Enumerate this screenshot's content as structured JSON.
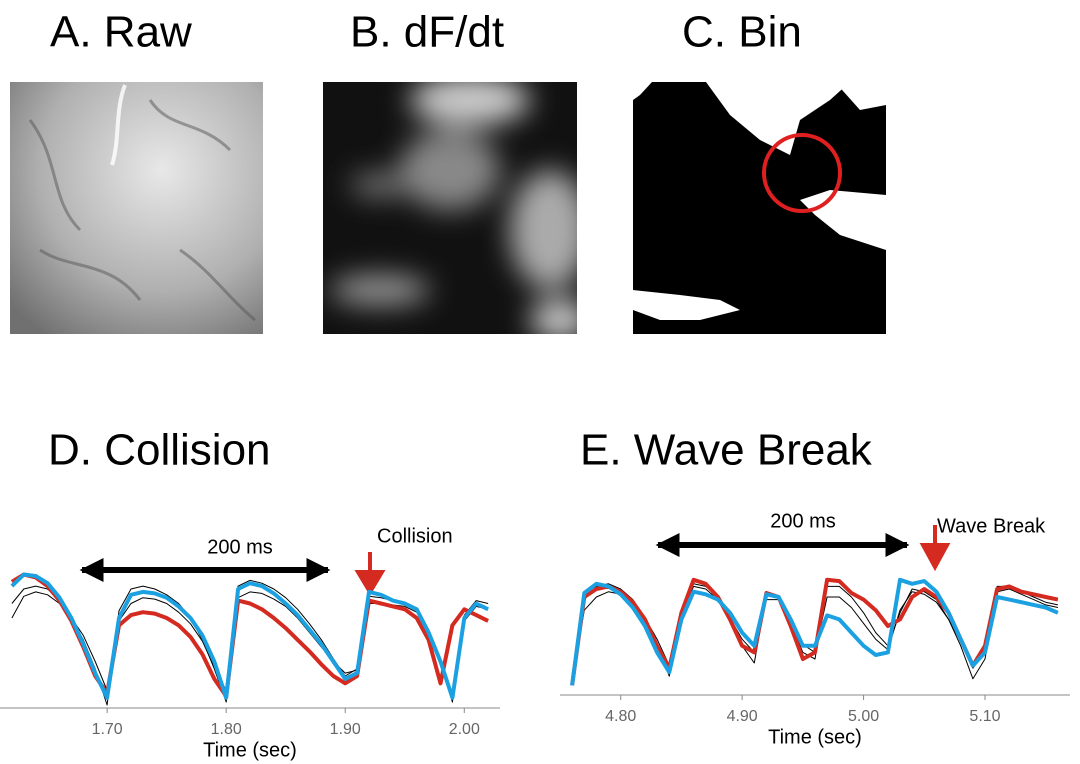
{
  "panels": [
    {
      "title": "A. Raw"
    },
    {
      "title": "B. dF/dt"
    },
    {
      "title": "C. Bin"
    }
  ],
  "chart_data": [
    {
      "type": "line",
      "title": "D. Collision",
      "xlabel": "Time (sec)",
      "annotations": [
        "200 ms",
        "Collision"
      ],
      "x": [
        1.62,
        1.63,
        1.64,
        1.65,
        1.66,
        1.67,
        1.68,
        1.69,
        1.7,
        1.71,
        1.72,
        1.73,
        1.74,
        1.75,
        1.76,
        1.77,
        1.78,
        1.79,
        1.8,
        1.81,
        1.82,
        1.83,
        1.84,
        1.85,
        1.86,
        1.87,
        1.88,
        1.89,
        1.9,
        1.91,
        1.92,
        1.93,
        1.94,
        1.95,
        1.96,
        1.97,
        1.98,
        1.99,
        2.0,
        2.01,
        2.02
      ],
      "xlim": [
        1.61,
        2.03
      ],
      "ylim": [
        0,
        1
      ],
      "xticks": [
        {
          "value": 1.7,
          "label": "1.70"
        },
        {
          "value": 1.8,
          "label": "1.80"
        },
        {
          "value": 1.9,
          "label": "1.90"
        },
        {
          "value": 2.0,
          "label": "2.00"
        }
      ],
      "series": [
        {
          "color": "#000000",
          "values": [
            0.7,
            0.8,
            0.82,
            0.8,
            0.72,
            0.6,
            0.45,
            0.25,
            0.0,
            0.65,
            0.8,
            0.82,
            0.8,
            0.76,
            0.7,
            0.6,
            0.45,
            0.25,
            0.02,
            0.82,
            0.86,
            0.84,
            0.8,
            0.74,
            0.66,
            0.56,
            0.45,
            0.32,
            0.2,
            0.25,
            0.75,
            0.74,
            0.72,
            0.7,
            0.66,
            0.52,
            0.32,
            0.02,
            0.62,
            0.72,
            0.7
          ]
        },
        {
          "color": "#000000",
          "values": [
            0.6,
            0.75,
            0.78,
            0.76,
            0.7,
            0.6,
            0.48,
            0.3,
            0.1,
            0.58,
            0.7,
            0.74,
            0.73,
            0.7,
            0.64,
            0.56,
            0.44,
            0.26,
            0.1,
            0.74,
            0.78,
            0.77,
            0.73,
            0.68,
            0.6,
            0.5,
            0.4,
            0.3,
            0.22,
            0.24,
            0.7,
            0.7,
            0.69,
            0.68,
            0.64,
            0.5,
            0.3,
            0.08,
            0.58,
            0.68,
            0.66
          ]
        },
        {
          "color": "#d42a20",
          "values": [
            0.85,
            0.9,
            0.88,
            0.82,
            0.72,
            0.58,
            0.4,
            0.2,
            0.08,
            0.55,
            0.62,
            0.64,
            0.63,
            0.6,
            0.55,
            0.47,
            0.35,
            0.18,
            0.06,
            0.72,
            0.7,
            0.66,
            0.6,
            0.53,
            0.45,
            0.37,
            0.28,
            0.2,
            0.15,
            0.2,
            0.72,
            0.7,
            0.68,
            0.66,
            0.6,
            0.45,
            0.15,
            0.55,
            0.66,
            0.62,
            0.58
          ]
        },
        {
          "color": "#1ba1e2",
          "values": [
            0.82,
            0.9,
            0.89,
            0.84,
            0.74,
            0.6,
            0.42,
            0.22,
            0.05,
            0.6,
            0.76,
            0.78,
            0.77,
            0.74,
            0.68,
            0.6,
            0.48,
            0.3,
            0.05,
            0.8,
            0.84,
            0.82,
            0.77,
            0.7,
            0.62,
            0.52,
            0.42,
            0.3,
            0.18,
            0.22,
            0.78,
            0.76,
            0.72,
            0.7,
            0.66,
            0.5,
            0.3,
            0.05,
            0.6,
            0.7,
            0.66
          ]
        }
      ]
    },
    {
      "type": "line",
      "title": "E. Wave Break",
      "xlabel": "Time (sec)",
      "annotations": [
        "200 ms",
        "Wave Break"
      ],
      "x": [
        4.76,
        4.77,
        4.78,
        4.79,
        4.8,
        4.81,
        4.82,
        4.83,
        4.84,
        4.85,
        4.86,
        4.87,
        4.88,
        4.89,
        4.9,
        4.91,
        4.92,
        4.93,
        4.94,
        4.95,
        4.96,
        4.97,
        4.98,
        4.99,
        5.0,
        5.01,
        5.02,
        5.03,
        5.04,
        5.05,
        5.06,
        5.07,
        5.08,
        5.09,
        5.1,
        5.11,
        5.12,
        5.13,
        5.14,
        5.15,
        5.16
      ],
      "xlim": [
        4.75,
        5.17
      ],
      "ylim": [
        0,
        1
      ],
      "xticks": [
        {
          "value": 4.8,
          "label": "4.80"
        },
        {
          "value": 4.9,
          "label": "4.90"
        },
        {
          "value": 5.0,
          "label": "5.00"
        },
        {
          "value": 5.1,
          "label": "5.10"
        }
      ],
      "series": [
        {
          "color": "#000000",
          "values": [
            0.1,
            0.7,
            0.8,
            0.82,
            0.78,
            0.7,
            0.56,
            0.36,
            0.12,
            0.62,
            0.82,
            0.8,
            0.72,
            0.55,
            0.35,
            0.22,
            0.74,
            0.72,
            0.52,
            0.3,
            0.25,
            0.8,
            0.8,
            0.72,
            0.6,
            0.45,
            0.35,
            0.6,
            0.78,
            0.76,
            0.7,
            0.55,
            0.35,
            0.1,
            0.25,
            0.8,
            0.8,
            0.76,
            0.72,
            0.68,
            0.66
          ]
        },
        {
          "color": "#000000",
          "values": [
            0.08,
            0.62,
            0.72,
            0.76,
            0.74,
            0.68,
            0.56,
            0.4,
            0.2,
            0.6,
            0.8,
            0.78,
            0.7,
            0.56,
            0.4,
            0.3,
            0.7,
            0.7,
            0.54,
            0.36,
            0.3,
            0.72,
            0.72,
            0.64,
            0.52,
            0.4,
            0.32,
            0.62,
            0.76,
            0.74,
            0.68,
            0.55,
            0.38,
            0.18,
            0.3,
            0.76,
            0.78,
            0.74,
            0.7,
            0.66,
            0.64
          ]
        },
        {
          "color": "#d42a20",
          "values": [
            0.05,
            0.72,
            0.78,
            0.8,
            0.76,
            0.68,
            0.55,
            0.35,
            0.18,
            0.6,
            0.85,
            0.82,
            0.72,
            0.55,
            0.35,
            0.3,
            0.75,
            0.72,
            0.5,
            0.25,
            0.3,
            0.85,
            0.84,
            0.75,
            0.7,
            0.62,
            0.5,
            0.55,
            0.72,
            0.78,
            0.72,
            0.6,
            0.4,
            0.2,
            0.35,
            0.78,
            0.8,
            0.76,
            0.74,
            0.72,
            0.7
          ]
        },
        {
          "color": "#1ba1e2",
          "values": [
            0.05,
            0.75,
            0.82,
            0.8,
            0.74,
            0.64,
            0.5,
            0.3,
            0.15,
            0.55,
            0.76,
            0.74,
            0.7,
            0.6,
            0.45,
            0.35,
            0.74,
            0.72,
            0.55,
            0.35,
            0.35,
            0.58,
            0.55,
            0.45,
            0.35,
            0.28,
            0.3,
            0.85,
            0.82,
            0.84,
            0.76,
            0.6,
            0.4,
            0.2,
            0.3,
            0.72,
            0.7,
            0.68,
            0.66,
            0.64,
            0.6
          ]
        }
      ]
    }
  ]
}
